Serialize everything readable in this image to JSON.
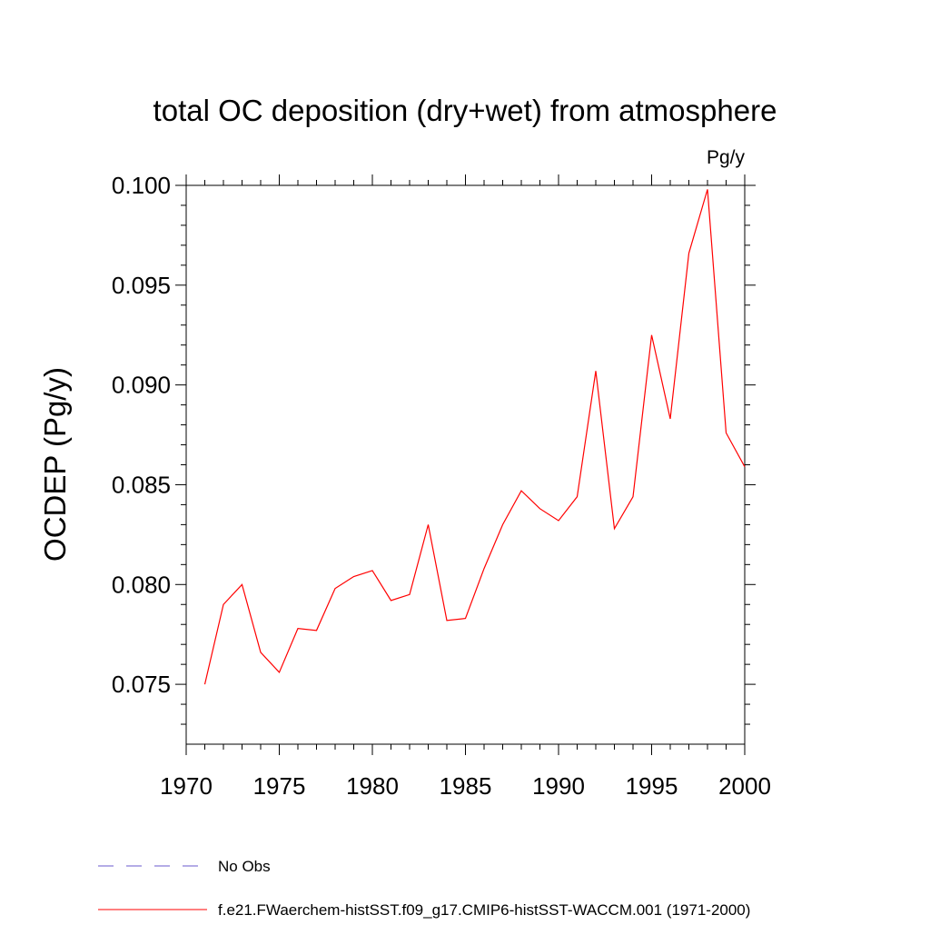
{
  "chart_data": {
    "type": "line",
    "title": "total OC deposition (dry+wet) from atmosphere",
    "units": "Pg/y",
    "ylabel": "OCDEP  (Pg/y)",
    "xlabel": "",
    "xlim": [
      1970,
      2000
    ],
    "ylim": [
      0.072,
      0.1
    ],
    "x_ticks": [
      1970,
      1975,
      1980,
      1985,
      1990,
      1995,
      2000
    ],
    "x_tick_labels": [
      "1970",
      "1975",
      "1980",
      "1985",
      "1990",
      "1995",
      "2000"
    ],
    "y_ticks": [
      0.075,
      0.08,
      0.085,
      0.09,
      0.095,
      0.1
    ],
    "y_tick_labels": [
      "0.075",
      "0.080",
      "0.085",
      "0.090",
      "0.095",
      "0.100"
    ],
    "grid": false,
    "legend_position": "bottom",
    "series": [
      {
        "name": "f.e21.FWaerchem-histSST.f09_g17.CMIP6-histSST-WACCM.001 (1971-2000)",
        "color": "#ff0000",
        "style": "solid",
        "x": [
          1971,
          1972,
          1973,
          1974,
          1975,
          1976,
          1977,
          1978,
          1979,
          1980,
          1981,
          1982,
          1983,
          1984,
          1985,
          1986,
          1987,
          1988,
          1989,
          1990,
          1991,
          1992,
          1993,
          1994,
          1995,
          1996,
          1997,
          1998,
          1999,
          2000
        ],
        "y": [
          0.075,
          0.079,
          0.08,
          0.0766,
          0.0756,
          0.0778,
          0.0777,
          0.0798,
          0.0804,
          0.0807,
          0.0792,
          0.0795,
          0.083,
          0.0782,
          0.0783,
          0.0808,
          0.083,
          0.0847,
          0.0838,
          0.0832,
          0.0844,
          0.0907,
          0.0828,
          0.0844,
          0.0925,
          0.0883,
          0.0966,
          0.0998,
          0.0876,
          0.0859
        ]
      }
    ],
    "legend": [
      {
        "label": "No Obs",
        "color": "#6a5acd",
        "style": "dashed"
      },
      {
        "label": "f.e21.FWaerchem-histSST.f09_g17.CMIP6-histSST-WACCM.001 (1971-2000)",
        "color": "#ff0000",
        "style": "solid"
      }
    ]
  }
}
